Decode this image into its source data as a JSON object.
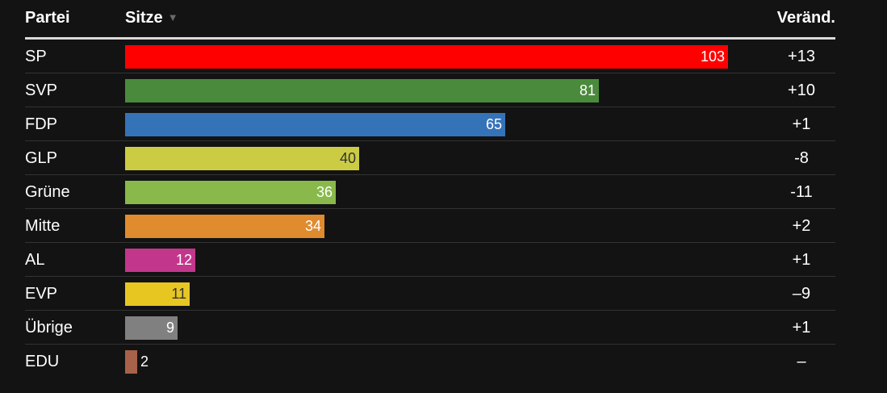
{
  "header": {
    "party": "Partei",
    "seats": "Sitze",
    "sort_icon": "▼",
    "change": "Veränd."
  },
  "chart_data": {
    "type": "bar",
    "orientation": "horizontal",
    "xlim": [
      0,
      103
    ],
    "categories": [
      "SP",
      "SVP",
      "FDP",
      "GLP",
      "Grüne",
      "Mitte",
      "AL",
      "EVP",
      "Übrige",
      "EDU"
    ],
    "values": [
      103,
      81,
      65,
      40,
      36,
      34,
      12,
      11,
      9,
      2
    ],
    "labels": [
      "103",
      "81",
      "65",
      "40",
      "36",
      "34",
      "12",
      "11",
      "9",
      "2"
    ],
    "changes": [
      "+13",
      "+10",
      "+1",
      "-8",
      "-11",
      "+2",
      "+1",
      "–9",
      "+1",
      "–"
    ],
    "colors": [
      "#ff0000",
      "#4a8a3c",
      "#3573b9",
      "#cccc44",
      "#88b94a",
      "#df8b2e",
      "#c2378b",
      "#e8c622",
      "#808080",
      "#a8614a"
    ],
    "label_colors": [
      "#ffffff",
      "#ffffff",
      "#ffffff",
      "#333333",
      "#ffffff",
      "#ffffff",
      "#ffffff",
      "#333333",
      "#ffffff",
      "#ffffff"
    ]
  }
}
